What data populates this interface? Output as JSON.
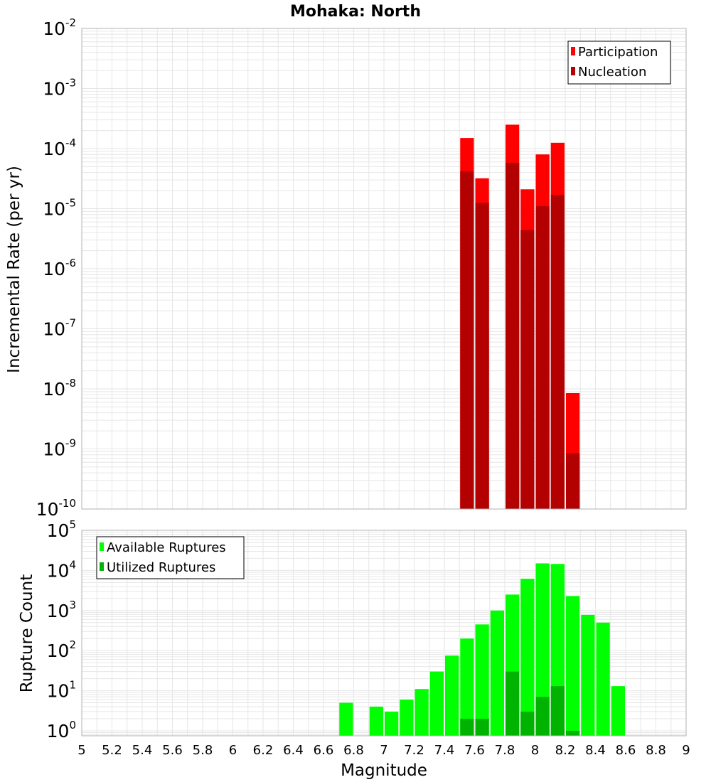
{
  "title": "Mohaka: North",
  "colors": {
    "participation": "#ff0000",
    "nucleation": "#b30000",
    "available": "#00ff00",
    "utilized": "#00b300",
    "grid": "#e6e6e6",
    "frame": "#b0b0b0"
  },
  "chart_data": [
    {
      "type": "bar",
      "title": "Mohaka: North",
      "xlabel": "Magnitude",
      "ylabel": "Incremental Rate (per yr)",
      "xlim": [
        5,
        9
      ],
      "ylim": [
        1e-10,
        0.01
      ],
      "yscale": "log",
      "grid": true,
      "legend_position": "top-right",
      "y_tick_exponents": [
        -10,
        -9,
        -8,
        -7,
        -6,
        -5,
        -4,
        -3,
        -2
      ],
      "series": [
        {
          "name": "Participation",
          "x": [
            7.55,
            7.65,
            7.85,
            7.95,
            8.05,
            8.15,
            8.25
          ],
          "values": [
            0.00015,
            3.2e-05,
            0.00025,
            2.1e-05,
            8e-05,
            0.000125,
            8.5e-09
          ]
        },
        {
          "name": "Nucleation",
          "x": [
            7.55,
            7.65,
            7.85,
            7.95,
            8.05,
            8.15,
            8.25
          ],
          "values": [
            4.2e-05,
            1.25e-05,
            5.8e-05,
            4.4e-06,
            1.1e-05,
            1.7e-05,
            8.5e-10
          ]
        }
      ]
    },
    {
      "type": "bar",
      "xlabel": "Magnitude",
      "ylabel": "Rupture Count",
      "xlim": [
        5,
        9
      ],
      "ylim": [
        0.75,
        100000.0
      ],
      "yscale": "log",
      "grid": true,
      "legend_position": "top-left",
      "x_ticks": [
        "5",
        "5.2",
        "5.4",
        "5.6",
        "5.8",
        "6",
        "6.2",
        "6.4",
        "6.6",
        "6.8",
        "7",
        "7.2",
        "7.4",
        "7.6",
        "7.8",
        "8",
        "8.2",
        "8.4",
        "8.6",
        "8.8",
        "9"
      ],
      "y_tick_exponents": [
        0,
        1,
        2,
        3,
        4,
        5
      ],
      "series": [
        {
          "name": "Available Ruptures",
          "x": [
            6.75,
            6.95,
            7.05,
            7.15,
            7.25,
            7.35,
            7.45,
            7.55,
            7.65,
            7.75,
            7.85,
            7.95,
            8.05,
            8.15,
            8.25,
            8.35,
            8.45,
            8.55
          ],
          "values": [
            5,
            4,
            3,
            6,
            11,
            30,
            75,
            200,
            450,
            1000,
            2500,
            6200,
            15000,
            14500,
            2300,
            780,
            500,
            13
          ]
        },
        {
          "name": "Utilized Ruptures",
          "x": [
            7.55,
            7.65,
            7.85,
            7.95,
            8.05,
            8.15,
            8.25
          ],
          "values": [
            2,
            2,
            30,
            3,
            7,
            13,
            1
          ]
        }
      ]
    }
  ]
}
